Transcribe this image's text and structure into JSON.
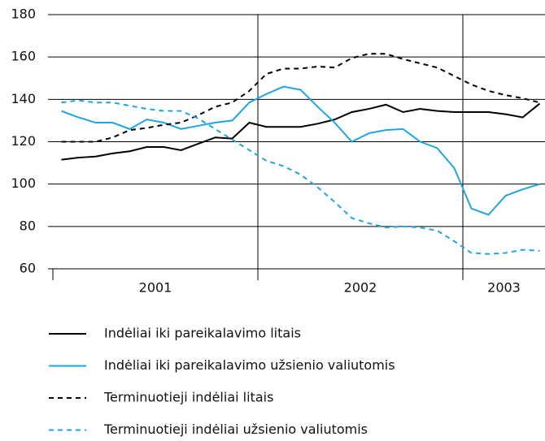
{
  "chart_data": {
    "type": "line",
    "categories": [
      null,
      null,
      null,
      null,
      null,
      null,
      null,
      null,
      null,
      null,
      null,
      null,
      null,
      null,
      null,
      null,
      null,
      null,
      null,
      null,
      null,
      null,
      null,
      null,
      null,
      null,
      null,
      null,
      null
    ],
    "x_groups": [
      {
        "label": "2001",
        "size": 12
      },
      {
        "label": "2002",
        "size": 12
      },
      {
        "label": "2003",
        "size": 5
      }
    ],
    "ylim": [
      60,
      180
    ],
    "yticks": [
      60,
      80,
      100,
      120,
      140,
      160,
      180
    ],
    "grid": true,
    "legend": "bottom",
    "series": [
      {
        "name": "Indėliai iki pareikalavimo litais",
        "color": "#000000",
        "dash": false,
        "values": [
          111.5,
          112.5,
          113,
          114.5,
          115.5,
          117.5,
          117.5,
          116,
          119,
          122,
          121.5,
          129,
          127,
          127,
          127,
          128.5,
          130.5,
          134,
          135.5,
          137.5,
          134,
          135.5,
          134.5,
          134,
          134,
          134,
          133,
          131.5,
          138
        ]
      },
      {
        "name": "Indėliai iki pareikalavimo užsienio valiutomis",
        "color": "#1ea6e0",
        "dash": false,
        "values": [
          134.5,
          131.5,
          129,
          129,
          126,
          130.5,
          129,
          126,
          127.5,
          129,
          130,
          138.5,
          142.5,
          146,
          144.5,
          136.5,
          129,
          120,
          124,
          125.5,
          126,
          120,
          117,
          107.5,
          88.5,
          85.5,
          94.5,
          97.5,
          100
        ]
      },
      {
        "name": "Terminuotieji indėliai litais",
        "color": "#000000",
        "dash": true,
        "values": [
          120,
          120,
          120,
          122,
          125.5,
          126.5,
          128,
          129,
          132.5,
          136.5,
          138.5,
          144,
          152,
          154.5,
          154.5,
          155.5,
          155,
          159.5,
          161.5,
          161.5,
          159,
          157,
          155,
          151,
          147,
          144,
          142,
          140.5,
          138.5
        ]
      },
      {
        "name": "Terminuotieji indėliai užsienio valiutomis",
        "color": "#1ea6e0",
        "dash": true,
        "values": [
          138.5,
          139.5,
          138.5,
          138.5,
          137,
          135.5,
          134.5,
          134.5,
          131,
          126,
          121,
          116,
          111,
          108.5,
          104.5,
          98.5,
          91.5,
          84,
          81.5,
          79.5,
          80,
          79.5,
          78,
          73,
          67.5,
          67,
          67.5,
          69,
          68.5
        ]
      }
    ]
  }
}
